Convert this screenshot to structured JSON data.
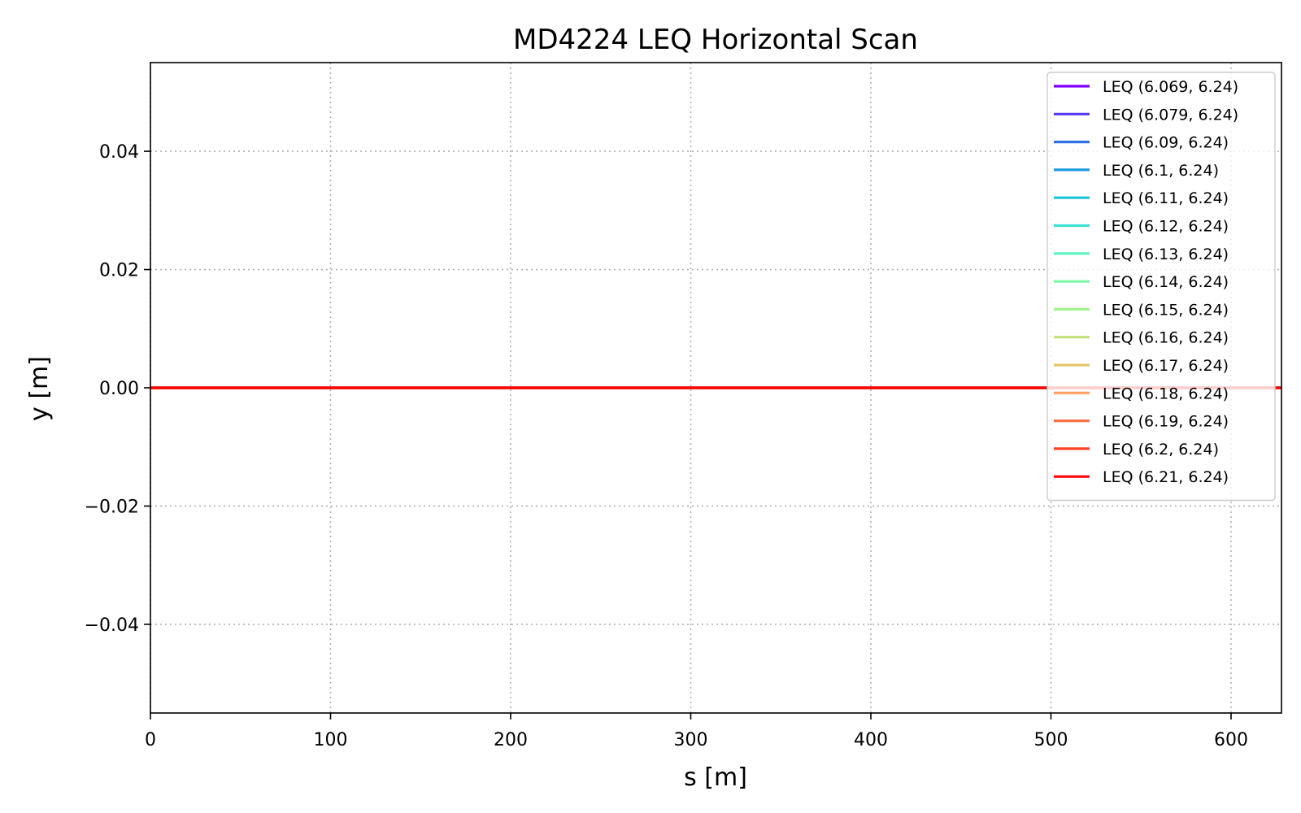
{
  "chart_data": {
    "type": "line",
    "title": "MD4224 LEQ Horizontal Scan",
    "xlabel": "s [m]",
    "ylabel": "y [m]",
    "xlim": [
      0,
      628
    ],
    "ylim": [
      -0.055,
      0.055
    ],
    "xticks": [
      0,
      100,
      200,
      300,
      400,
      500,
      600
    ],
    "xtick_labels": [
      "0",
      "100",
      "200",
      "300",
      "400",
      "500",
      "600"
    ],
    "yticks": [
      -0.04,
      -0.02,
      0.0,
      0.02,
      0.04
    ],
    "ytick_labels": [
      "−0.04",
      "−0.02",
      "0.00",
      "0.02",
      "0.04"
    ],
    "grid": true,
    "legend_position": "top-right",
    "x": [
      0,
      628
    ],
    "series": [
      {
        "name": "LEQ (6.069, 6.24)",
        "color": "#8000ff",
        "values": [
          0,
          0
        ]
      },
      {
        "name": "LEQ (6.079, 6.24)",
        "color": "#5a39f6",
        "values": [
          0,
          0
        ]
      },
      {
        "name": "LEQ (6.09, 6.24)",
        "color": "#3370e6",
        "values": [
          0,
          0
        ]
      },
      {
        "name": "LEQ (6.1, 6.24)",
        "color": "#1a9ee0",
        "values": [
          0,
          0
        ]
      },
      {
        "name": "LEQ (6.11, 6.24)",
        "color": "#1cc6d9",
        "values": [
          0,
          0
        ]
      },
      {
        "name": "LEQ (6.12, 6.24)",
        "color": "#3ae0d0",
        "values": [
          0,
          0
        ]
      },
      {
        "name": "LEQ (6.13, 6.24)",
        "color": "#5cf4c0",
        "values": [
          0,
          0
        ]
      },
      {
        "name": "LEQ (6.14, 6.24)",
        "color": "#80f8a8",
        "values": [
          0,
          0
        ]
      },
      {
        "name": "LEQ (6.15, 6.24)",
        "color": "#a2f48e",
        "values": [
          0,
          0
        ]
      },
      {
        "name": "LEQ (6.16, 6.24)",
        "color": "#c4e27c",
        "values": [
          0,
          0
        ]
      },
      {
        "name": "LEQ (6.17, 6.24)",
        "color": "#e8c66c",
        "values": [
          0,
          0
        ]
      },
      {
        "name": "LEQ (6.18, 6.24)",
        "color": "#ffa060",
        "values": [
          0,
          0
        ]
      },
      {
        "name": "LEQ (6.19, 6.24)",
        "color": "#ff7042",
        "values": [
          0,
          0
        ]
      },
      {
        "name": "LEQ (6.2, 6.24)",
        "color": "#ff4226",
        "values": [
          0,
          0
        ]
      },
      {
        "name": "LEQ (6.21, 6.24)",
        "color": "#ff0000",
        "values": [
          0,
          0
        ]
      }
    ]
  }
}
